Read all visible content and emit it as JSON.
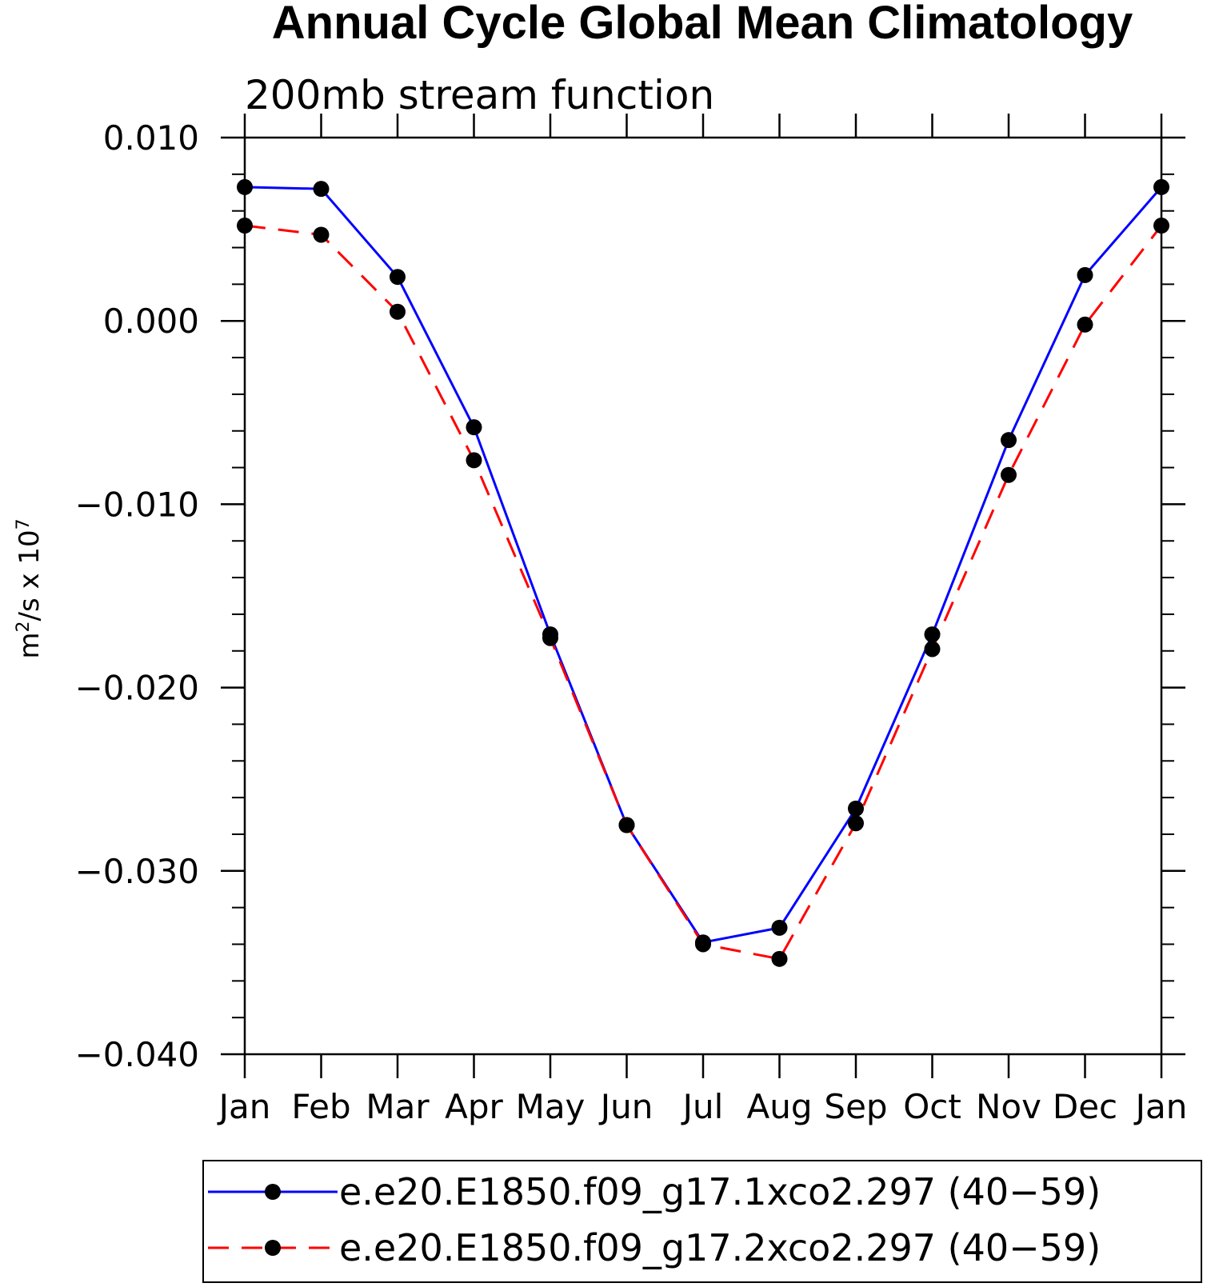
{
  "chart_data": {
    "type": "line",
    "title": "Annual Cycle Global Mean Climatology",
    "subtitle": "200mb stream function",
    "ylabel_base": "m",
    "ylabel_sup": "2",
    "ylabel_mid": "/s x 10",
    "ylabel_exp": "7",
    "xlabel": "",
    "categories": [
      "Jan",
      "Feb",
      "Mar",
      "Apr",
      "May",
      "Jun",
      "Jul",
      "Aug",
      "Sep",
      "Oct",
      "Nov",
      "Dec",
      "Jan"
    ],
    "ylim": [
      -0.04,
      0.01
    ],
    "yticks": [
      0.01,
      0.0,
      -0.01,
      -0.02,
      -0.03,
      -0.04
    ],
    "ytick_labels": [
      "0.010",
      "0.000",
      "−0.010",
      "−0.020",
      "−0.030",
      "−0.040"
    ],
    "yminor_step": 0.002,
    "grid": false,
    "legend_position": "bottom",
    "series": [
      {
        "name": "e.e20.E1850.f09_g17.1xco2.297 (40−59)",
        "color": "#0000ff",
        "dash": "solid",
        "marker": "filled-circle",
        "values": [
          0.0073,
          0.0072,
          0.0024,
          -0.0058,
          -0.0171,
          -0.0275,
          -0.0339,
          -0.0331,
          -0.0266,
          -0.0171,
          -0.0065,
          0.0025,
          0.0073
        ]
      },
      {
        "name": "e.e20.E1850.f09_g17.2xco2.297 (40−59)",
        "color": "#ff0000",
        "dash": "dashed",
        "marker": "filled-circle",
        "values": [
          0.0052,
          0.0047,
          0.0005,
          -0.0076,
          -0.0173,
          -0.0275,
          -0.034,
          -0.0348,
          -0.0274,
          -0.0179,
          -0.0084,
          -0.0002,
          0.0052
        ]
      }
    ]
  }
}
